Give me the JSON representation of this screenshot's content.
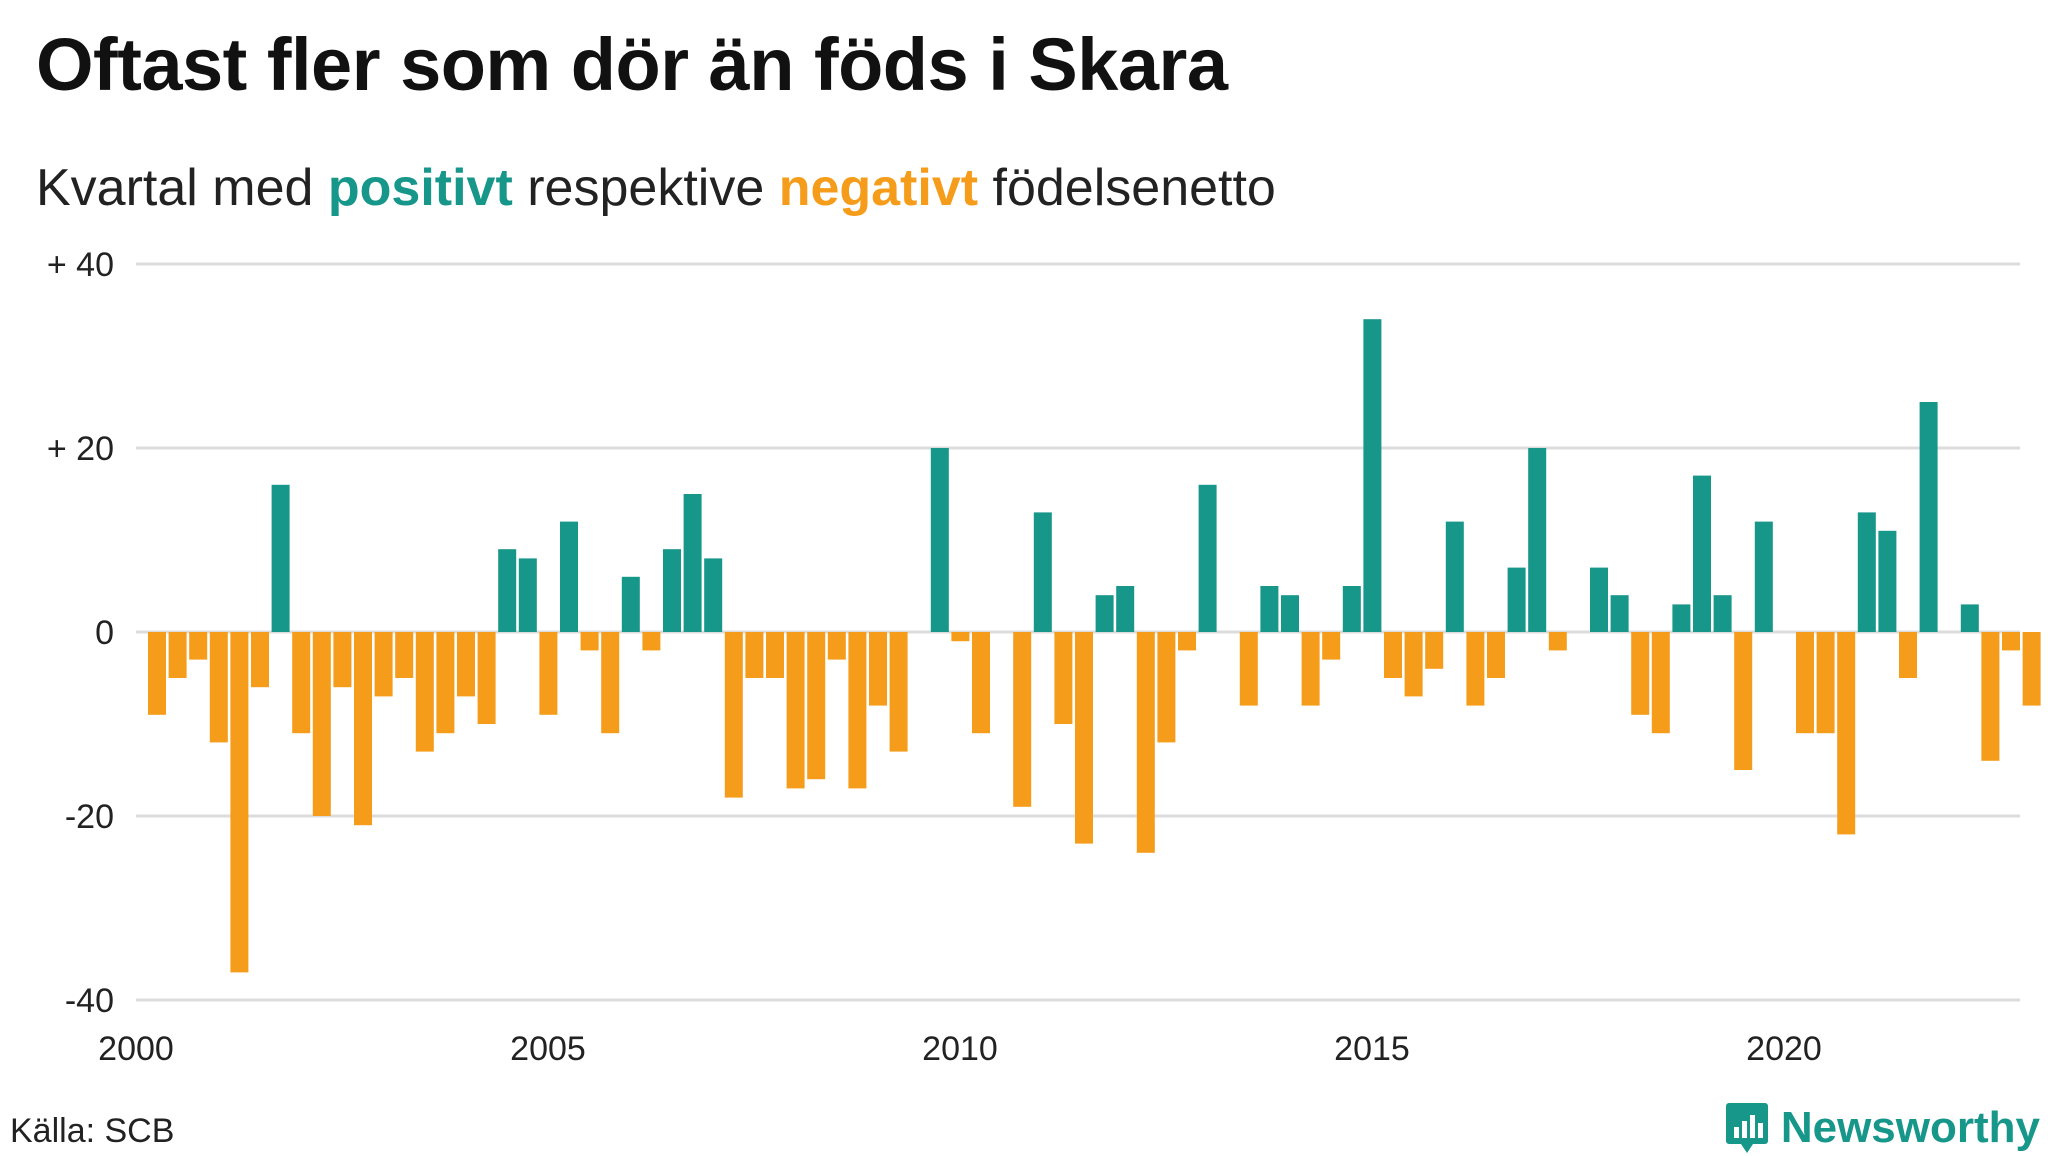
{
  "title": "Oftast fler som dör än föds i Skara",
  "subtitle": {
    "prefix": "Kvartal med ",
    "positive_word": "positivt",
    "middle": " respektive ",
    "negative_word": "negativt",
    "suffix": " födelsenetto"
  },
  "source": "Källa: SCB",
  "brand": {
    "name": "Newsworthy",
    "icon": "bar-chart-speech-bubble-icon"
  },
  "colors": {
    "positive": "#17968a",
    "negative": "#f59c1a",
    "grid": "#dcdcdc"
  },
  "chart_data": {
    "type": "bar",
    "x_start_year": 2000,
    "periods_per_year": 4,
    "ylim": [
      -40,
      40
    ],
    "yticks": [
      {
        "value": 40,
        "label": "+ 40"
      },
      {
        "value": 20,
        "label": "+ 20"
      },
      {
        "value": 0,
        "label": "0"
      },
      {
        "value": -20,
        "label": "-20"
      },
      {
        "value": -40,
        "label": "-40"
      }
    ],
    "xticks": [
      {
        "value": 2000,
        "label": "2000"
      },
      {
        "value": 2005,
        "label": "2005"
      },
      {
        "value": 2010,
        "label": "2010"
      },
      {
        "value": 2015,
        "label": "2015"
      },
      {
        "value": 2020,
        "label": "2020"
      }
    ],
    "grid": true,
    "values": [
      -9,
      -5,
      -3,
      -12,
      -37,
      -6,
      16,
      -11,
      -20,
      -6,
      -21,
      -7,
      -5,
      -13,
      -11,
      -7,
      -10,
      9,
      8,
      -9,
      12,
      -2,
      -11,
      6,
      -2,
      9,
      15,
      8,
      -18,
      -5,
      -5,
      -17,
      -16,
      -3,
      -17,
      -8,
      -13,
      0,
      20,
      -1,
      -11,
      0,
      -19,
      13,
      -10,
      -23,
      4,
      5,
      -24,
      -12,
      -2,
      16,
      0,
      -8,
      5,
      4,
      -8,
      -3,
      5,
      34,
      -5,
      -7,
      -4,
      12,
      -8,
      -5,
      7,
      20,
      -2,
      0,
      7,
      4,
      -9,
      -11,
      3,
      17,
      4,
      -15,
      12,
      0,
      -11,
      -11,
      -22,
      13,
      11,
      -5,
      25,
      0,
      3,
      -14,
      -2,
      -8
    ]
  }
}
